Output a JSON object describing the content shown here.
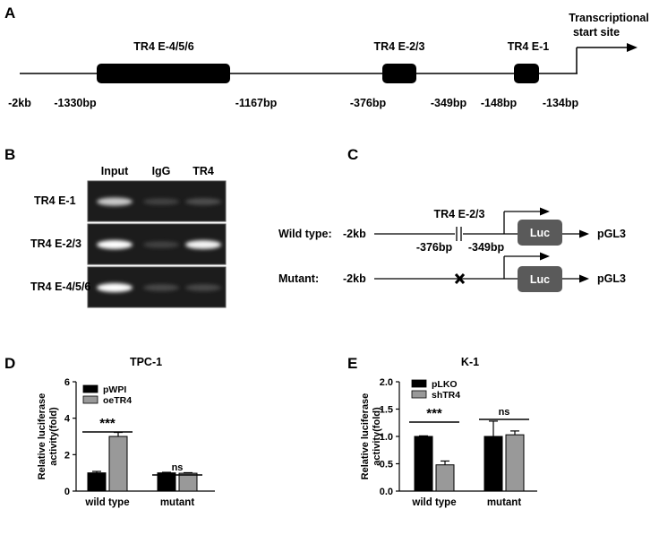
{
  "panel_a": {
    "letter": "A",
    "tss_label_line1": "Transcriptional",
    "tss_label_line2": "start site",
    "elements": [
      {
        "label": "TR4 E-4/5/6"
      },
      {
        "label": "TR4 E-2/3"
      },
      {
        "label": "TR4 E-1"
      }
    ],
    "positions": [
      "-2kb",
      "-1330bp",
      "-1167bp",
      "-376bp",
      "-349bp",
      "-148bp",
      "-134bp"
    ]
  },
  "panel_b": {
    "letter": "B",
    "lanes": [
      "Input",
      "IgG",
      "TR4"
    ],
    "rows": [
      {
        "label": "TR4 E-1",
        "intensity": [
          0.75,
          0.12,
          0.18
        ]
      },
      {
        "label": "TR4 E-2/3",
        "intensity": [
          1.0,
          0.12,
          0.95
        ]
      },
      {
        "label": "TR4 E-4/5/6",
        "intensity": [
          1.0,
          0.15,
          0.15
        ]
      }
    ]
  },
  "panel_c": {
    "letter": "C",
    "wild_label": "Wild type:",
    "mutant_label": "Mutant:",
    "start": "-2kb",
    "site_label": "TR4 E-2/3",
    "bp_left": "-376bp",
    "bp_right": "-349bp",
    "luc": "Luc",
    "vector": "pGL3"
  },
  "chart_data": [
    {
      "letter": "D",
      "type": "bar",
      "title": "TPC-1",
      "ylabel_line1": "Relative luciferase",
      "ylabel_line2": "activity(fold)",
      "ylim": [
        0,
        6
      ],
      "yticks": [
        "0",
        "2",
        "4",
        "6"
      ],
      "categories": [
        "wild type",
        "mutant"
      ],
      "series": [
        {
          "name": "pWPI",
          "color": "#000000",
          "values": [
            1.0,
            1.0
          ],
          "errors": [
            0.08,
            0.03
          ]
        },
        {
          "name": "oeTR4",
          "color": "#999999",
          "values": [
            3.0,
            0.98
          ],
          "errors": [
            0.22,
            0.03
          ]
        }
      ],
      "significance": [
        "***",
        "ns"
      ]
    },
    {
      "letter": "E",
      "type": "bar",
      "title": "K-1",
      "ylabel_line1": "Relative luciferase",
      "ylabel_line2": "activity(fold)",
      "ylim": [
        0,
        2.0
      ],
      "yticks": [
        "0.0",
        "0.5",
        "1.0",
        "1.5",
        "2.0"
      ],
      "categories": [
        "wild type",
        "mutant"
      ],
      "series": [
        {
          "name": "pLKO",
          "color": "#000000",
          "values": [
            1.0,
            1.0
          ],
          "errors": [
            0.01,
            0.28
          ]
        },
        {
          "name": "shTR4",
          "color": "#999999",
          "values": [
            0.48,
            1.03
          ],
          "errors": [
            0.07,
            0.07
          ]
        }
      ],
      "significance": [
        "***",
        "ns"
      ]
    }
  ]
}
